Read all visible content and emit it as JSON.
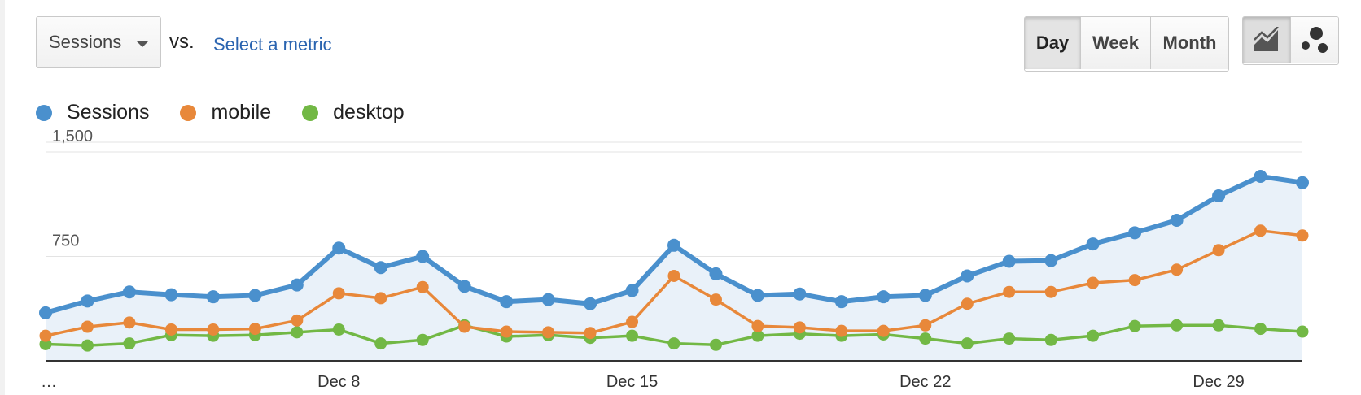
{
  "controls": {
    "primary_metric": "Sessions",
    "vs_label": "vs.",
    "compare_link": "Select a metric",
    "periods": [
      {
        "label": "Day",
        "active": true
      },
      {
        "label": "Week",
        "active": false
      },
      {
        "label": "Month",
        "active": false
      }
    ],
    "views": [
      {
        "icon": "line-chart-icon",
        "active": true
      },
      {
        "icon": "motion-chart-icon",
        "active": false
      }
    ]
  },
  "chart_data": {
    "type": "line",
    "ylim": [
      0,
      1500
    ],
    "y_ticks": [
      {
        "value": 1500,
        "label": "1,500"
      },
      {
        "value": 750,
        "label": "750"
      }
    ],
    "x_ticks": [
      {
        "index": 0,
        "label": "…"
      },
      {
        "index": 7,
        "label": "Dec 8"
      },
      {
        "index": 14,
        "label": "Dec 15"
      },
      {
        "index": 21,
        "label": "Dec 22"
      },
      {
        "index": 28,
        "label": "Dec 29"
      }
    ],
    "series": [
      {
        "name": "Sessions",
        "color": "#4a90cd",
        "area": true,
        "values": [
          345,
          430,
          495,
          475,
          460,
          470,
          545,
          810,
          670,
          750,
          535,
          425,
          440,
          410,
          505,
          830,
          625,
          470,
          480,
          425,
          460,
          470,
          610,
          715,
          720,
          840,
          920,
          1010,
          1185,
          1325,
          1280
        ]
      },
      {
        "name": "mobile",
        "color": "#e8883a",
        "area": false,
        "values": [
          180,
          245,
          275,
          225,
          225,
          230,
          290,
          485,
          450,
          530,
          245,
          210,
          205,
          200,
          280,
          610,
          440,
          250,
          240,
          215,
          215,
          255,
          410,
          495,
          495,
          560,
          580,
          655,
          795,
          935,
          900
        ]
      },
      {
        "name": "desktop",
        "color": "#72b845",
        "area": false,
        "values": [
          120,
          110,
          125,
          185,
          180,
          185,
          205,
          225,
          125,
          150,
          255,
          175,
          185,
          165,
          180,
          125,
          115,
          180,
          195,
          180,
          190,
          160,
          125,
          160,
          150,
          180,
          250,
          255,
          255,
          230,
          210
        ]
      }
    ]
  }
}
